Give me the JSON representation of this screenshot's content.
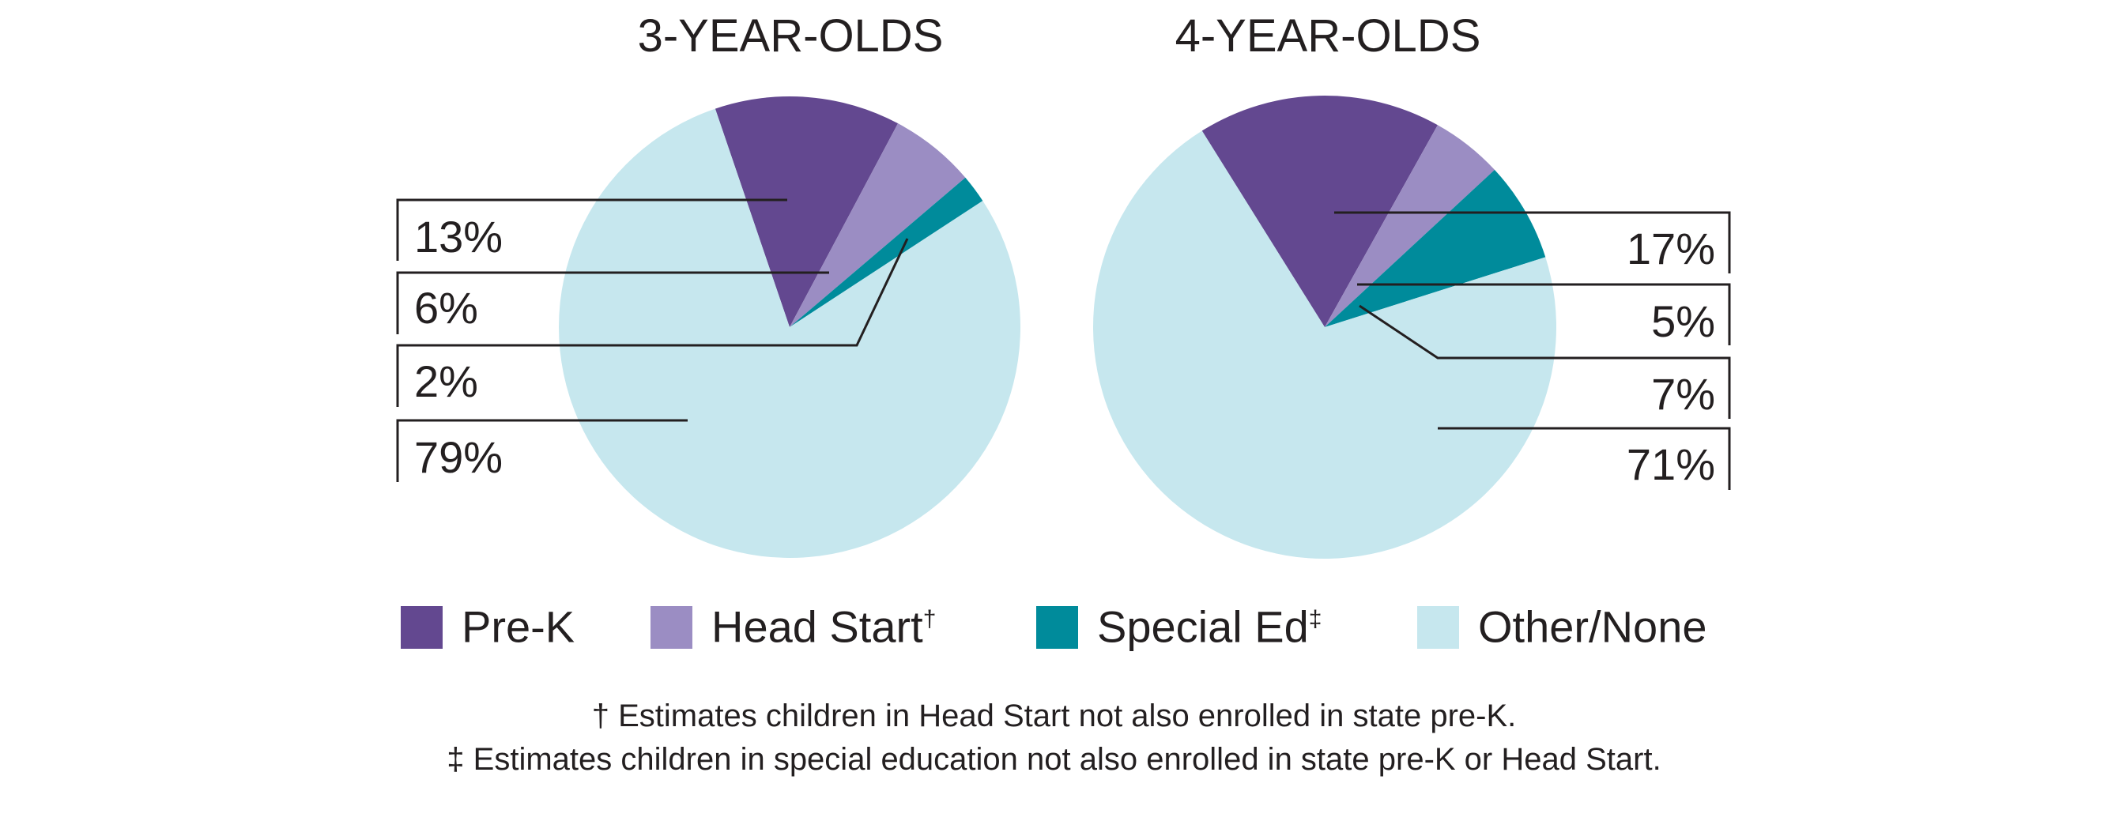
{
  "chart_data": [
    {
      "type": "pie",
      "title": "3-YEAR-OLDS",
      "categories": [
        "Pre-K",
        "Head Start",
        "Special Ed",
        "Other/None"
      ],
      "values": [
        13,
        6,
        2,
        79
      ],
      "labels": [
        "13%",
        "6%",
        "2%",
        "79%"
      ],
      "start_angle_deg": -18.8,
      "label_side": "left"
    },
    {
      "type": "pie",
      "title": "4-YEAR-OLDS",
      "categories": [
        "Pre-K",
        "Head Start",
        "Special Ed",
        "Other/None"
      ],
      "values": [
        17,
        5,
        7,
        71
      ],
      "labels": [
        "17%",
        "5%",
        "7%",
        "71%"
      ],
      "start_angle_deg": -32,
      "label_side": "right"
    }
  ],
  "colors": [
    "#634890",
    "#9b8dc3",
    "#008b9b",
    "#c6e7ee"
  ],
  "legend": [
    {
      "label": "Pre-K",
      "mark": ""
    },
    {
      "label": "Head Start",
      "mark": "†"
    },
    {
      "label": "Special Ed",
      "mark": "‡"
    },
    {
      "label": "Other/None",
      "mark": ""
    }
  ],
  "footnotes": [
    "† Estimates children in Head Start not also enrolled in state pre-K.",
    "‡ Estimates children in special education not also enrolled in state pre-K or Head Start."
  ]
}
